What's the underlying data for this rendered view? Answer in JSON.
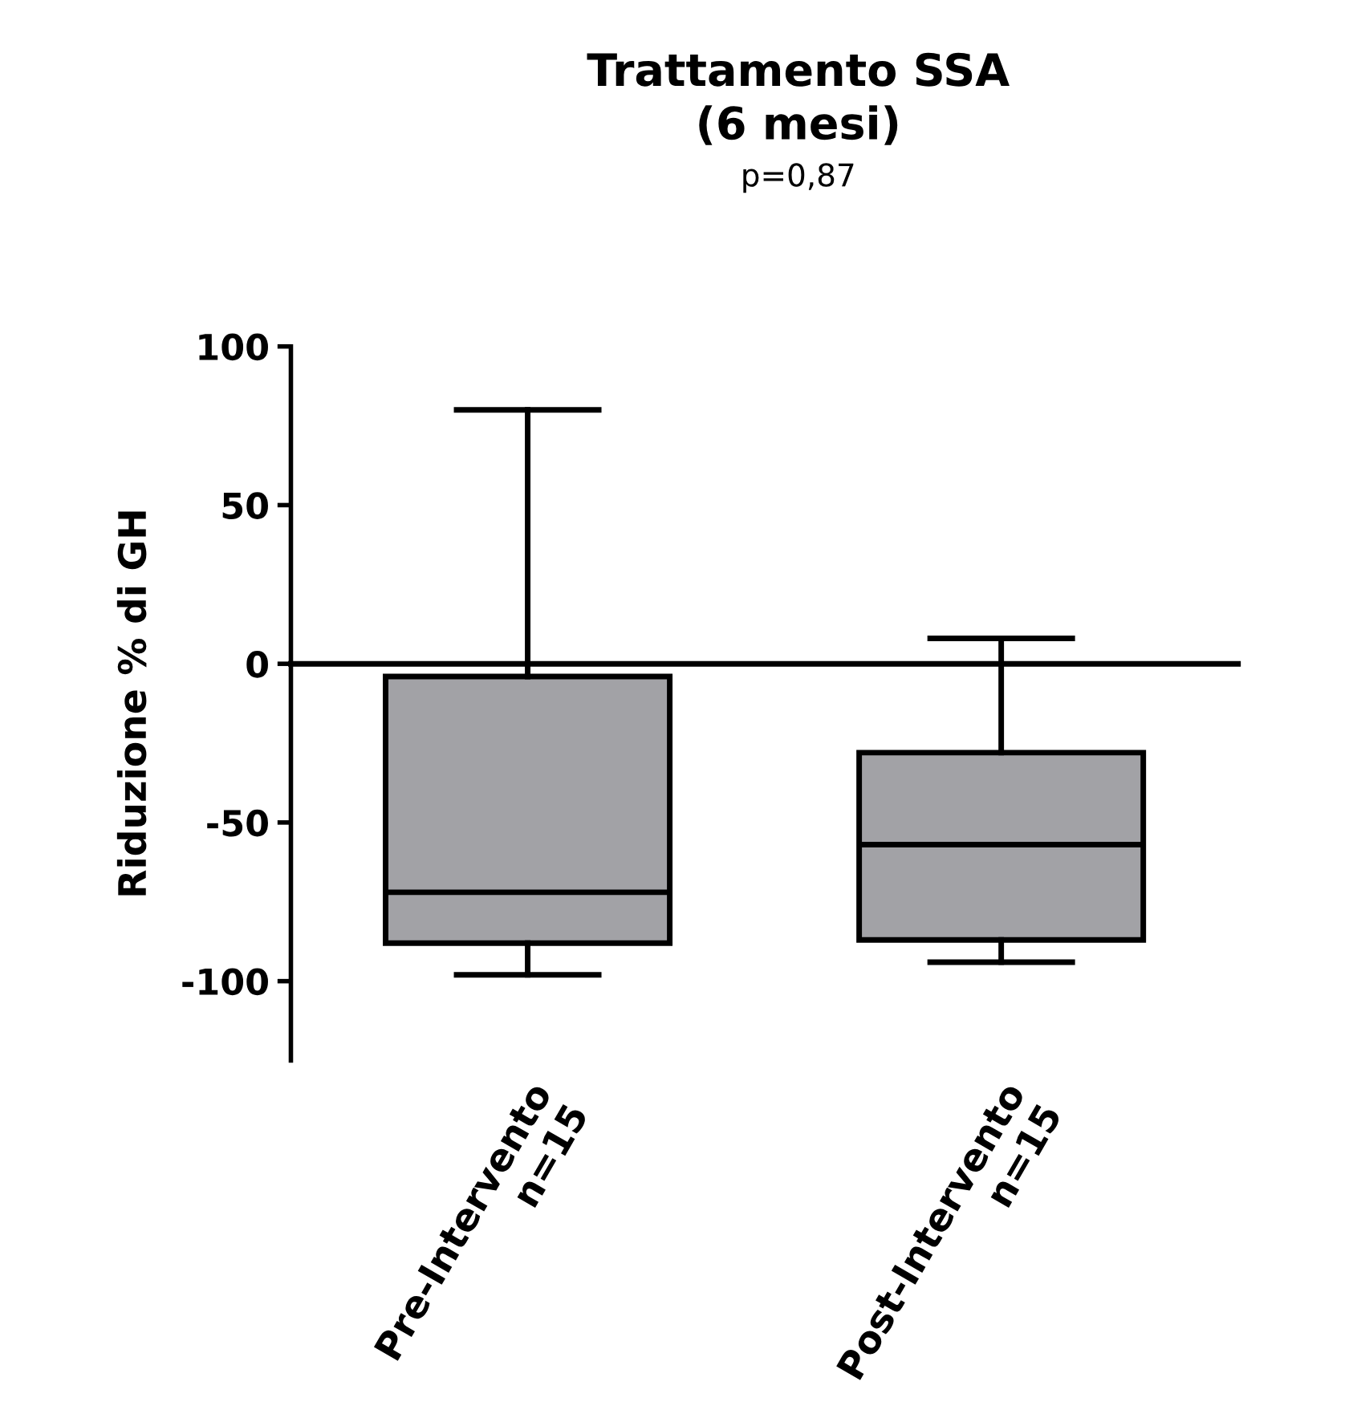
{
  "chart_data": {
    "type": "box",
    "title": "Trattamento SSA\n(6 mesi)",
    "subtitle": "p=0,87",
    "ylabel": "Riduzione % di GH",
    "categories": [
      "Pre-Intervento\nn=15",
      "Post-Intervento\nn=15"
    ],
    "boxes": [
      {
        "low": -98,
        "q1": -88,
        "median": -72,
        "q3": -4,
        "high": 80
      },
      {
        "low": -94,
        "q1": -87,
        "median": -57,
        "q3": -28,
        "high": 8
      }
    ],
    "color": "#a2a2a6",
    "ylim": [
      -125,
      100
    ],
    "yticks": [
      -100,
      -50,
      0,
      50,
      100
    ],
    "ref_lines": [
      {
        "axis": "y",
        "value": 0,
        "color": "#000000"
      }
    ],
    "grid": false
  }
}
